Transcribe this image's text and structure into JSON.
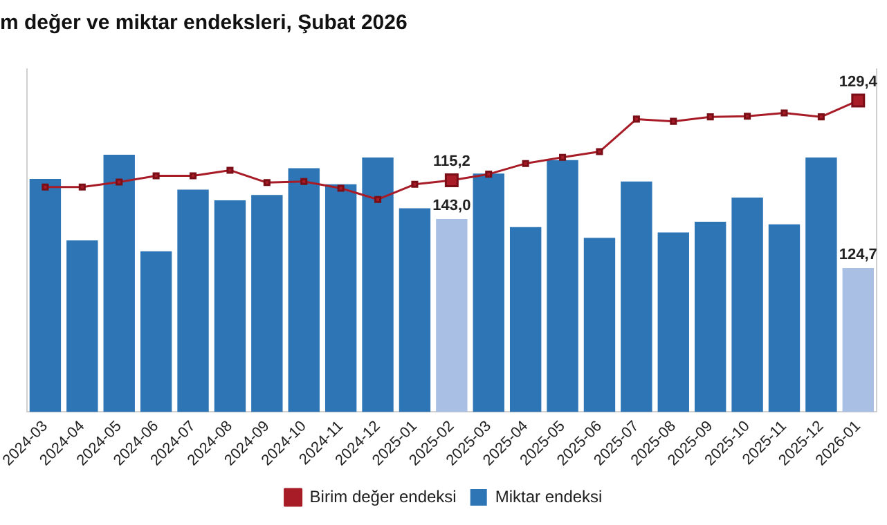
{
  "chart_data": {
    "type": "bar",
    "title": "m değer ve miktar endeksleri, Şubat 2026",
    "categories": [
      "2024-03",
      "2024-04",
      "2024-05",
      "2024-06",
      "2024-07",
      "2024-08",
      "2024-09",
      "2024-10",
      "2024-11",
      "2024-12",
      "2025-01",
      "2025-02",
      "2025-03",
      "2025-04",
      "2025-05",
      "2025-06",
      "2025-07",
      "2025-08",
      "2025-09",
      "2025-10",
      "2025-11",
      "2025-12",
      "2026-01"
    ],
    "series": [
      {
        "name": "Birim değer endeksi",
        "type": "line",
        "axis": "y2",
        "color": "#a81c28",
        "marker": "square",
        "values": [
          114.0,
          114.0,
          114.9,
          116.0,
          116.0,
          117.0,
          114.8,
          115.0,
          113.8,
          111.8,
          114.5,
          115.2,
          116.3,
          118.2,
          119.3,
          120.3,
          126.1,
          125.7,
          126.5,
          126.6,
          127.2,
          126.5,
          129.4
        ],
        "value_labels": [
          null,
          null,
          null,
          null,
          null,
          null,
          null,
          null,
          null,
          null,
          null,
          "115,2",
          null,
          null,
          null,
          null,
          null,
          null,
          null,
          null,
          null,
          null,
          "129,4"
        ]
      },
      {
        "name": "Miktar endeksi",
        "color": "#2e75b6",
        "colors": [
          "#2e75b6",
          "#2e75b6",
          "#2e75b6",
          "#2e75b6",
          "#2e75b6",
          "#2e75b6",
          "#2e75b6",
          "#2e75b6",
          "#2e75b6",
          "#2e75b6",
          "#2e75b6",
          "#a9bfe4",
          "#2e75b6",
          "#2e75b6",
          "#2e75b6",
          "#2e75b6",
          "#2e75b6",
          "#2e75b6",
          "#2e75b6",
          "#2e75b6",
          "#2e75b6",
          "#2e75b6",
          "#a9bfe4"
        ],
        "values": [
          158,
          135,
          167,
          131,
          154,
          150,
          152,
          162,
          156,
          166,
          147,
          143.0,
          160,
          140,
          165,
          136,
          157,
          138,
          142,
          151,
          141,
          166,
          124.7
        ],
        "value_labels": [
          null,
          null,
          null,
          null,
          null,
          null,
          null,
          null,
          null,
          null,
          null,
          "143,0",
          null,
          null,
          null,
          null,
          null,
          null,
          null,
          null,
          null,
          null,
          "124,7"
        ]
      }
    ],
    "ylim": [
      71,
      199
    ],
    "y2lim": [
      74,
      135
    ],
    "tick_labels": "x",
    "grid": false,
    "legend": "bottom"
  }
}
